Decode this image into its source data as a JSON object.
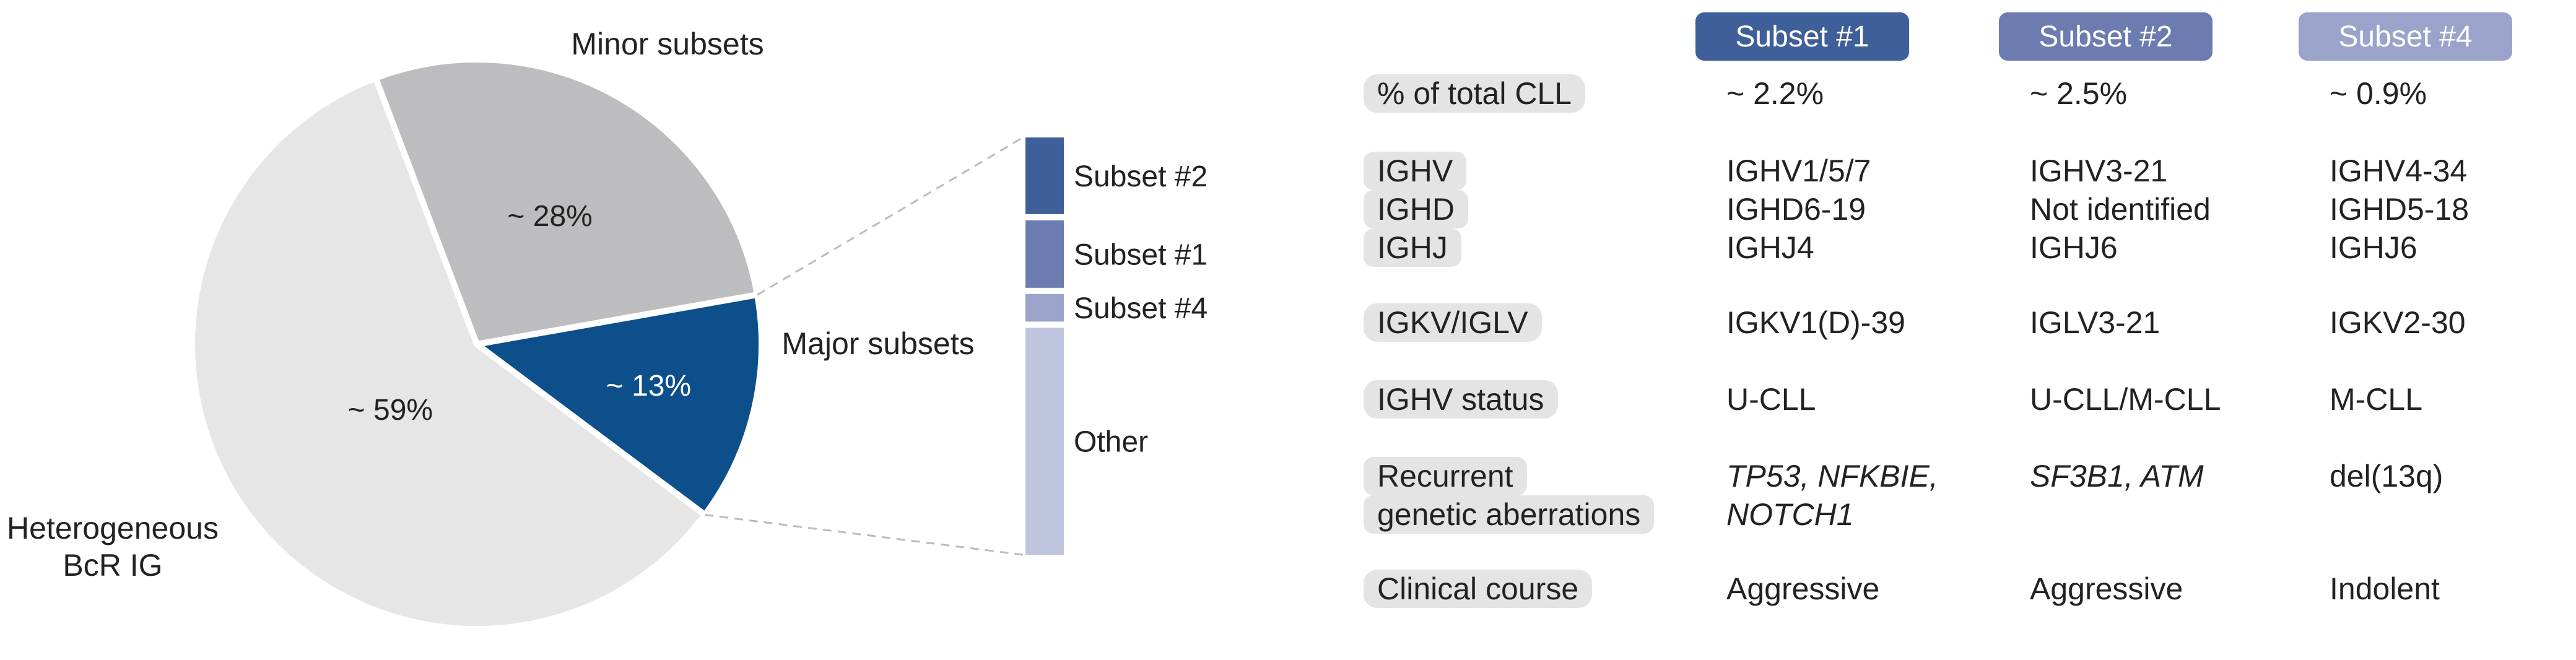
{
  "pie": {
    "labels": {
      "minor": "Minor subsets",
      "major": "Major subsets",
      "hetero_line1": "Heterogeneous",
      "hetero_line2": "BcR IG"
    }
  },
  "chart_data": {
    "type": "pie",
    "slices": [
      {
        "label": "~ 59%",
        "value": 59,
        "color": "#e6e6e6"
      },
      {
        "label": "~ 28%",
        "value": 28,
        "color": "#bdbdbf"
      },
      {
        "label": "~ 13%",
        "value": 13,
        "color": "#0d4f8b"
      }
    ],
    "breakdown": {
      "type": "stacked-bar",
      "segments": [
        {
          "label": "Subset #2",
          "value": 2.5,
          "color": "#3f5f9a"
        },
        {
          "label": "Subset #1",
          "value": 2.2,
          "color": "#6c7cb0"
        },
        {
          "label": "Subset #4",
          "value": 0.9,
          "color": "#9aa4ca"
        },
        {
          "label": "Other",
          "value": 7.4,
          "color": "#bfc5de"
        }
      ]
    }
  },
  "table": {
    "headers": [
      {
        "label": "Subset #1",
        "color": "#3f5f9a"
      },
      {
        "label": "Subset #2",
        "color": "#6c7cb0"
      },
      {
        "label": "Subset #4",
        "color": "#9aa4ca"
      }
    ],
    "rows": [
      {
        "label": [
          "% of total CLL"
        ],
        "cells": [
          [
            "~ 2.2%"
          ],
          [
            "~ 2.5%"
          ],
          [
            "~ 0.9%"
          ]
        ]
      },
      {
        "label": [
          "IGHV",
          "IGHD",
          "IGHJ"
        ],
        "cells": [
          [
            "IGHV1/5/7",
            "IGHD6-19",
            "IGHJ4"
          ],
          [
            "IGHV3-21",
            "Not identified",
            "IGHJ6"
          ],
          [
            "IGHV4-34",
            "IGHD5-18",
            "IGHJ6"
          ]
        ]
      },
      {
        "label": [
          "IGKV/IGLV"
        ],
        "cells": [
          [
            "IGKV1(D)-39"
          ],
          [
            "IGLV3-21"
          ],
          [
            "IGKV2-30"
          ]
        ]
      },
      {
        "label": [
          "IGHV status"
        ],
        "cells": [
          [
            "U-CLL"
          ],
          [
            "U-CLL/M-CLL"
          ],
          [
            "M-CLL"
          ]
        ]
      },
      {
        "label": [
          "Recurrent",
          "genetic aberrations"
        ],
        "cells": [
          [
            "TP53, NFKBIE,",
            "NOTCH1"
          ],
          [
            "SF3B1, ATM"
          ],
          [
            "del(13q)"
          ]
        ]
      },
      {
        "label": [
          "Clinical course"
        ],
        "cells": [
          [
            "Aggressive"
          ],
          [
            "Aggressive"
          ],
          [
            "Indolent"
          ]
        ]
      }
    ]
  }
}
